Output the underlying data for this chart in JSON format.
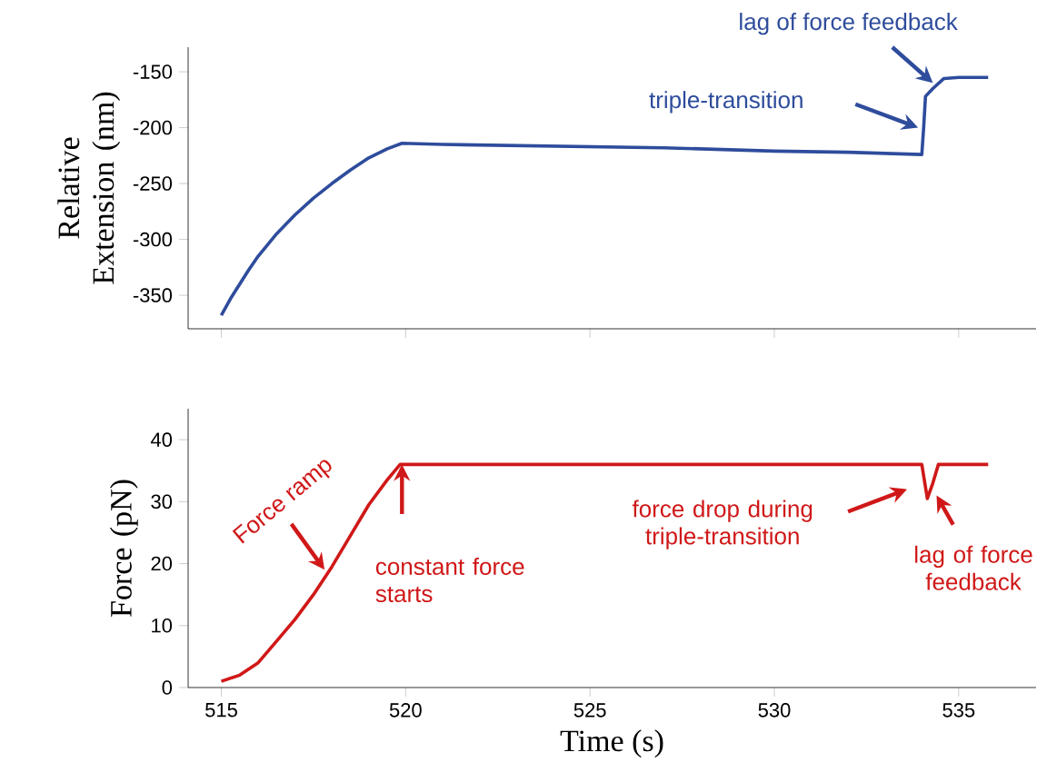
{
  "chart_data": [
    {
      "type": "line",
      "ylabel": "Relative Extension (nm)",
      "xlim": [
        514.1,
        537.1
      ],
      "ylim": [
        -380,
        -128
      ],
      "xticks": [
        515,
        520,
        525,
        530,
        535
      ],
      "yticks": [
        -350,
        -300,
        -250,
        -200,
        -150
      ],
      "tick_labels": "y",
      "series": [
        {
          "color": "#2e4c9c",
          "x": [
            515,
            515.25,
            515.5,
            515.75,
            516,
            516.5,
            517,
            517.5,
            518,
            518.5,
            519,
            519.5,
            519.9,
            521,
            523,
            525,
            527,
            530,
            532,
            534.0,
            534.05,
            534.1,
            534.3,
            534.6,
            535,
            535.8
          ],
          "values": [
            -368,
            -353,
            -340,
            -327,
            -315,
            -295,
            -278,
            -263,
            -250,
            -238,
            -227,
            -219,
            -214,
            -215,
            -216,
            -217,
            -218,
            -221,
            -222,
            -224,
            -200,
            -172,
            -165,
            -156,
            -155,
            -155
          ]
        }
      ],
      "annotations": [
        "lag of force feedback",
        "triple-transition"
      ]
    },
    {
      "type": "line",
      "xlabel": "Time (s)",
      "ylabel": "Force (pN)",
      "xlim": [
        514.1,
        537.1
      ],
      "ylim": [
        0,
        45
      ],
      "xticks": [
        515,
        520,
        525,
        530,
        535
      ],
      "yticks": [
        0,
        10,
        20,
        30,
        40
      ],
      "series": [
        {
          "color": "#d01818",
          "x": [
            515,
            515.5,
            516,
            516.5,
            517,
            517.5,
            518,
            518.5,
            519,
            519.5,
            519.85,
            520,
            525,
            530,
            534.0,
            534.15,
            534.3,
            534.45,
            535,
            535.8
          ],
          "values": [
            1,
            2,
            4,
            7.5,
            11,
            15,
            19.5,
            24.5,
            29.5,
            33.5,
            36,
            36,
            36,
            36,
            36,
            30.5,
            33,
            36,
            36,
            36
          ]
        }
      ],
      "annotations": [
        "Force ramp",
        "constant force starts",
        "force drop during triple-transition",
        "lag of force feedback"
      ]
    }
  ]
}
